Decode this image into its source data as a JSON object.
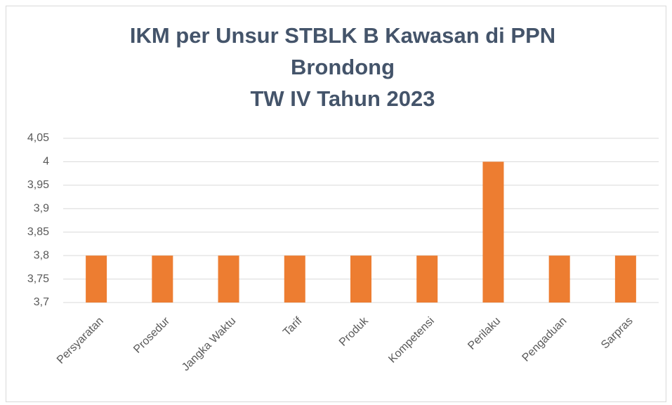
{
  "chart_data": {
    "type": "bar",
    "title": [
      "IKM per Unsur STBLK B Kawasan di PPN",
      "Brondong",
      "TW IV Tahun 2023"
    ],
    "categories": [
      "Persyaratan",
      "Prosedur",
      "Jangka Waktu",
      "Tarif",
      "Produk",
      "Kompetensi",
      "Perilaku",
      "Pengaduan",
      "Sarpras"
    ],
    "values": [
      3.8,
      3.8,
      3.8,
      3.8,
      3.8,
      3.8,
      4,
      3.8,
      3.8
    ],
    "color": "#ed7d31",
    "ylim": [
      3.7,
      4.05
    ],
    "yticks": [
      {
        "value": 3.7,
        "label": "3,7"
      },
      {
        "value": 3.75,
        "label": "3,75"
      },
      {
        "value": 3.8,
        "label": "3,8"
      },
      {
        "value": 3.85,
        "label": "3,85"
      },
      {
        "value": 3.9,
        "label": "3,9"
      },
      {
        "value": 3.95,
        "label": "3,95"
      },
      4,
      {
        "value": 4.05,
        "label": "4,05"
      }
    ],
    "grid": true
  }
}
